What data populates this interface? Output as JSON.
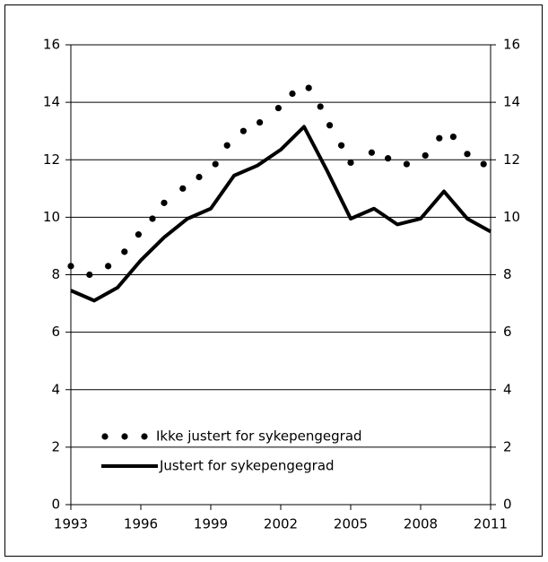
{
  "chart_data": {
    "type": "line",
    "xlim": [
      1993,
      2011
    ],
    "xticks": [
      1993,
      1996,
      1999,
      2002,
      2005,
      2008,
      2011
    ],
    "ylim": [
      0,
      16
    ],
    "yticks": [
      0,
      2,
      4,
      6,
      8,
      10,
      12,
      14,
      16
    ],
    "y2lim": [
      0,
      16
    ],
    "y2ticks": [
      0,
      2,
      4,
      6,
      8,
      10,
      12,
      14,
      16
    ],
    "grid": true,
    "legend": "lower left",
    "series": [
      {
        "name": "Ikke justert for sykepengegrad",
        "color": "#000000",
        "style": "dotted",
        "x": [
          1993.0,
          1993.8,
          1994.6,
          1995.3,
          1995.9,
          1996.5,
          1997.0,
          1997.8,
          1998.5,
          1999.2,
          1999.7,
          2000.4,
          2001.1,
          2001.9,
          2002.5,
          2003.2,
          2003.7,
          2004.1,
          2004.6,
          2005.0,
          2005.9,
          2006.6,
          2007.4,
          2008.2,
          2008.8,
          2009.4,
          2010.0,
          2010.7
        ],
        "values": [
          8.3,
          8.0,
          8.3,
          8.8,
          9.4,
          9.95,
          10.5,
          11.0,
          11.4,
          11.85,
          12.5,
          13.0,
          13.3,
          13.8,
          14.3,
          14.5,
          13.85,
          13.2,
          12.5,
          11.9,
          12.25,
          12.05,
          11.85,
          12.15,
          12.75,
          12.8,
          12.2,
          11.85
        ]
      },
      {
        "name": "Justert for sykepengegrad",
        "color": "#000000",
        "style": "solid",
        "x": [
          1993,
          1994,
          1995,
          1996,
          1997,
          1998,
          1999,
          2000,
          2001,
          2002,
          2003,
          2004,
          2005,
          2006,
          2007,
          2008,
          2009,
          2010,
          2011
        ],
        "values": [
          7.45,
          7.1,
          7.55,
          8.5,
          9.3,
          9.95,
          10.3,
          11.45,
          11.8,
          12.35,
          13.15,
          11.6,
          9.95,
          10.3,
          9.75,
          9.95,
          10.9,
          9.95,
          9.5
        ]
      }
    ]
  }
}
